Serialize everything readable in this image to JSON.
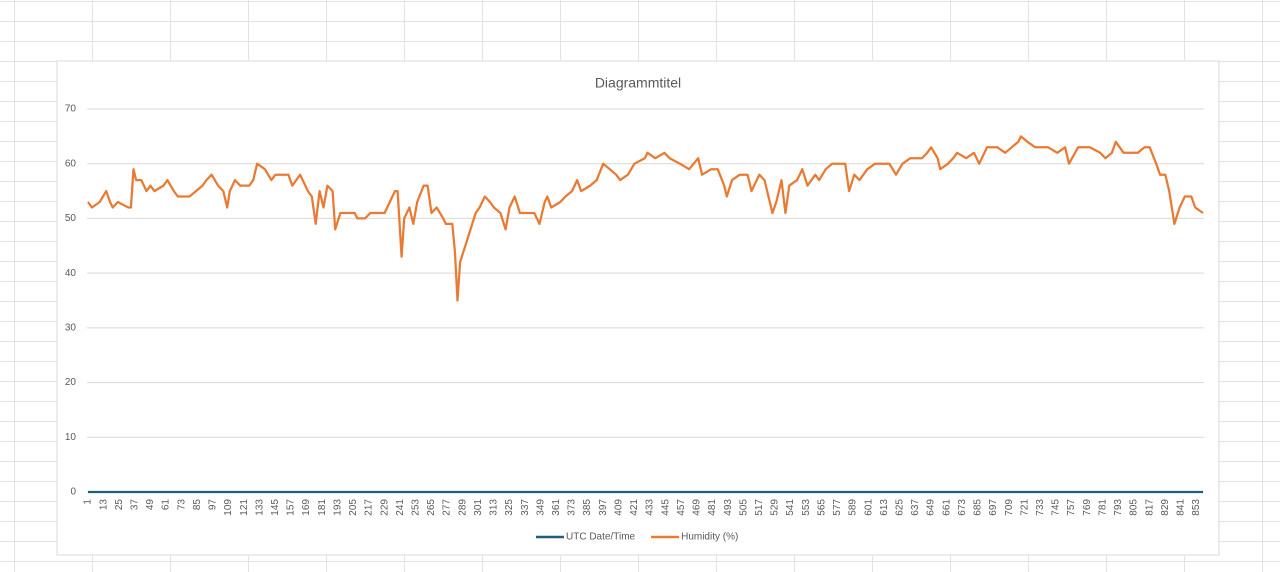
{
  "chart_data": {
    "type": "line",
    "title": "Diagrammtitel",
    "xlim": [
      1,
      858
    ],
    "xticks": [
      1,
      13,
      25,
      37,
      49,
      61,
      73,
      85,
      97,
      109,
      121,
      133,
      145,
      157,
      169,
      181,
      193,
      205,
      217,
      229,
      241,
      253,
      265,
      277,
      289,
      301,
      313,
      325,
      337,
      349,
      361,
      373,
      385,
      397,
      409,
      421,
      433,
      445,
      457,
      469,
      481,
      493,
      505,
      517,
      529,
      541,
      553,
      565,
      577,
      589,
      601,
      613,
      625,
      637,
      649,
      661,
      673,
      685,
      697,
      709,
      721,
      733,
      745,
      757,
      769,
      781,
      793,
      805,
      817,
      829,
      841,
      853
    ],
    "ylim": [
      0,
      70
    ],
    "yticks": [
      0,
      10,
      20,
      30,
      40,
      50,
      60,
      70
    ],
    "grid": true,
    "legend": "bottom",
    "series": [
      {
        "name": "UTC Date/Time",
        "color": "#1f5f7a",
        "x": [
          1,
          858
        ],
        "values": [
          0,
          0
        ]
      },
      {
        "name": "Humidity (%)",
        "color": "#e97a33",
        "x": [
          1,
          4,
          10,
          15,
          18,
          20,
          24,
          32,
          34,
          36,
          38,
          42,
          46,
          49,
          52,
          59,
          62,
          67,
          70,
          79,
          84,
          89,
          92,
          96,
          101,
          105,
          108,
          110,
          114,
          118,
          125,
          128,
          131,
          137,
          142,
          145,
          155,
          158,
          164,
          170,
          173,
          176,
          179,
          182,
          185,
          189,
          191,
          195,
          206,
          208,
          214,
          218,
          229,
          233,
          237,
          239,
          242,
          244,
          248,
          251,
          254,
          259,
          262,
          265,
          269,
          274,
          276,
          281,
          283,
          285,
          287,
          291,
          295,
          299,
          302,
          306,
          310,
          313,
          318,
          322,
          325,
          329,
          333,
          344,
          348,
          352,
          354,
          357,
          364,
          368,
          373,
          377,
          380,
          387,
          392,
          397,
          402,
          407,
          410,
          416,
          421,
          429,
          431,
          437,
          444,
          448,
          456,
          463,
          470,
          473,
          480,
          485,
          490,
          492,
          496,
          502,
          508,
          511,
          517,
          521,
          525,
          527,
          530,
          534,
          537,
          540,
          546,
          550,
          554,
          560,
          563,
          568,
          573,
          583,
          586,
          590,
          594,
          600,
          606,
          617,
          622,
          627,
          633,
          642,
          646,
          649,
          654,
          656,
          662,
          666,
          669,
          676,
          682,
          686,
          692,
          700,
          706,
          711,
          716,
          718,
          723,
          729,
          739,
          746,
          752,
          755,
          762,
          771,
          779,
          783,
          788,
          791,
          797,
          808,
          813,
          817,
          822,
          825,
          829,
          832,
          836,
          840,
          844,
          849,
          852,
          858
        ],
        "values": [
          53,
          52,
          53,
          55,
          53,
          52,
          53,
          52,
          52,
          59,
          57,
          57,
          55,
          56,
          55,
          56,
          57,
          55,
          54,
          54,
          55,
          56,
          57,
          58,
          56,
          55,
          52,
          55,
          57,
          56,
          56,
          57,
          60,
          59,
          57,
          58,
          58,
          56,
          58,
          55,
          54,
          49,
          55,
          52,
          56,
          55,
          48,
          51,
          51,
          50,
          50,
          51,
          51,
          53,
          55,
          55,
          43,
          50,
          52,
          49,
          53,
          56,
          56,
          51,
          52,
          50,
          49,
          49,
          44,
          35,
          42,
          45,
          48,
          51,
          52,
          54,
          53,
          52,
          51,
          48,
          52,
          54,
          51,
          51,
          49,
          53,
          54,
          52,
          53,
          54,
          55,
          57,
          55,
          56,
          57,
          60,
          59,
          58,
          57,
          58,
          60,
          61,
          62,
          61,
          62,
          61,
          60,
          59,
          61,
          58,
          59,
          59,
          56,
          54,
          57,
          58,
          58,
          55,
          58,
          57,
          53,
          51,
          53,
          57,
          51,
          56,
          57,
          59,
          56,
          58,
          57,
          59,
          60,
          60,
          55,
          58,
          57,
          59,
          60,
          60,
          58,
          60,
          61,
          61,
          62,
          63,
          61,
          59,
          60,
          61,
          62,
          61,
          62,
          60,
          63,
          63,
          62,
          63,
          64,
          65,
          64,
          63,
          63,
          62,
          63,
          60,
          63,
          63,
          62,
          61,
          62,
          64,
          62,
          62,
          63,
          63,
          60,
          58,
          58,
          55,
          49,
          52,
          54,
          54,
          52,
          51
        ]
      }
    ]
  }
}
